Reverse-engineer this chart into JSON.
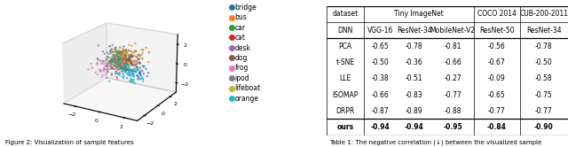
{
  "legend_labels": [
    "bridge",
    "bus",
    "car",
    "cat",
    "desk",
    "dog",
    "frog",
    "ipod",
    "lifeboat",
    "orange"
  ],
  "legend_colors": [
    "#1f77b4",
    "#ff7f0e",
    "#2ca02c",
    "#d62728",
    "#9467bd",
    "#8c564b",
    "#e377c2",
    "#7f7f7f",
    "#bcbd22",
    "#17becf"
  ],
  "table_header_row1": [
    "dataset",
    "Tiny ImageNet",
    "",
    "",
    "COCO 2014",
    "CUB-200-2011"
  ],
  "table_header_row2": [
    "DNN",
    "VGG-16",
    "ResNet-34",
    "MobileNet-V2",
    "ResNet-50",
    "ResNet-34"
  ],
  "table_methods": [
    "PCA",
    "t-SNE",
    "LLE",
    "ISOMAP",
    "DRPR",
    "ours"
  ],
  "table_data": [
    [
      "-0.65",
      "-0.78",
      "-0.81",
      "-0.56",
      "-0.78"
    ],
    [
      "-0.50",
      "-0.36",
      "-0.66",
      "-0.67",
      "-0.50"
    ],
    [
      "-0.38",
      "-0.51",
      "-0.27",
      "-0.09",
      "-0.58"
    ],
    [
      "-0.66",
      "-0.83",
      "-0.77",
      "-0.65",
      "-0.75"
    ],
    [
      "-0.87",
      "-0.89",
      "-0.88",
      "-0.77",
      "-0.77"
    ],
    [
      "-0.94",
      "-0.94",
      "-0.95",
      "-0.84",
      "-0.90"
    ]
  ],
  "caption_left": "Figure 2: Visualization of sample features",
  "caption_right": "Table 1: The negative correlation (↓) between the visualized sample",
  "bg_color": "#ffffff",
  "seed": 42,
  "n_points": 50
}
